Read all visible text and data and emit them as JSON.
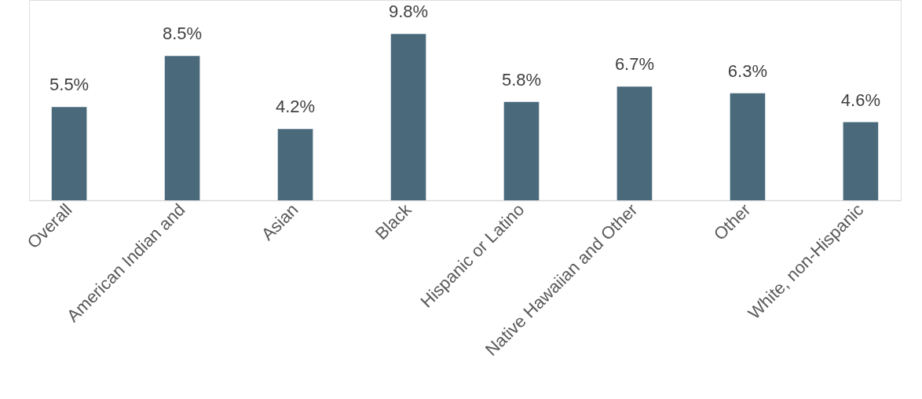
{
  "chart_data": {
    "type": "bar",
    "categories": [
      "Overall",
      "American Indian and",
      "Asian",
      "Black",
      "Hispanic or Latino",
      "Native Hawaiian and Other",
      "Other",
      "White, non-Hispanic"
    ],
    "values": [
      5.5,
      8.5,
      4.2,
      9.8,
      5.8,
      6.7,
      6.3,
      4.6
    ],
    "value_labels": [
      "5.5%",
      "8.5%",
      "4.2%",
      "9.8%",
      "5.8%",
      "6.7%",
      "6.3%",
      "4.6%"
    ],
    "color": "#4a6a7c",
    "ylim": [
      0,
      11.8
    ],
    "tick_labels": "x",
    "grid": false
  }
}
